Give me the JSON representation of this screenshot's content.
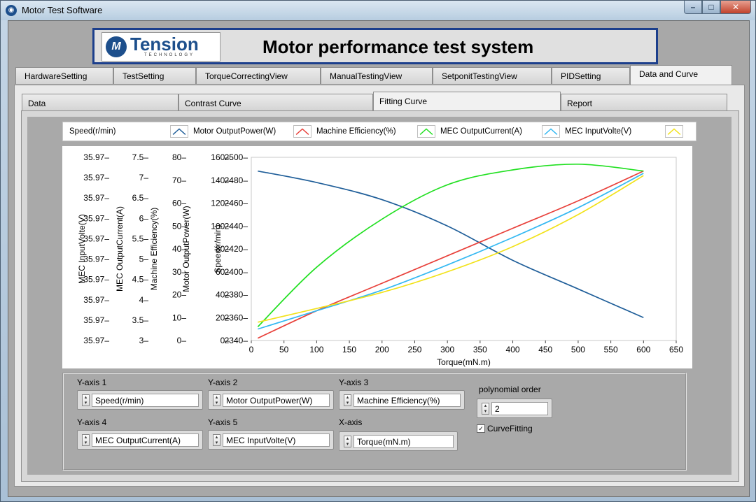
{
  "window": {
    "title": "Motor Test Software"
  },
  "header": {
    "logo_text": "Tension",
    "logo_sub": "TECHNOLOGY",
    "title": "Motor performance test system"
  },
  "main_tabs": [
    "HardwareSetting",
    "TestSetting",
    "TorqueCorrectingView",
    "ManualTestingView",
    "SetponitTestingView",
    "PIDSetting",
    "Data and Curve"
  ],
  "sub_tabs": [
    "Data",
    "Contrast Curve",
    "Fitting Curve",
    "Report"
  ],
  "legend": {
    "speed_label": "Speed(r/min)",
    "items": [
      {
        "label": "Motor OutputPower(W)",
        "color": "#1f5e99"
      },
      {
        "label": "Machine Efficiency(%)",
        "color": "#e8403a"
      },
      {
        "label": "MEC OutputCurrent(A)",
        "color": "#22e022"
      },
      {
        "label": "MEC InputVolte(V)",
        "color": "#33b8f2"
      },
      {
        "label": "",
        "color": "#f2e21a"
      }
    ]
  },
  "chart_data": {
    "type": "line",
    "xlabel": "Torque(mN.m)",
    "xlim": [
      0,
      650
    ],
    "xticks": [
      0,
      50,
      100,
      150,
      200,
      250,
      300,
      350,
      400,
      450,
      500,
      550,
      600,
      650
    ],
    "y_axes": [
      {
        "label": "MEC InputVolte(V)",
        "ticks": [
          "35.97",
          "35.97",
          "35.97",
          "35.97",
          "35.97",
          "35.97",
          "35.97",
          "35.97",
          "35.97",
          "35.97"
        ]
      },
      {
        "label": "MEC OutputCurrent(A)",
        "ticks": [
          "3",
          "3.5",
          "4",
          "4.5",
          "5",
          "5.5",
          "6",
          "6.5",
          "7",
          "7.5"
        ],
        "range": [
          3,
          7.5
        ]
      },
      {
        "label": "Machine Efficiency(%)",
        "ticks": [
          "0",
          "10",
          "20",
          "30",
          "40",
          "50",
          "60",
          "70",
          "80"
        ],
        "range": [
          0,
          80
        ]
      },
      {
        "label": "Motor OutputPower(W)",
        "ticks": [
          "0",
          "20",
          "40",
          "60",
          "80",
          "100",
          "120",
          "140",
          "160"
        ],
        "range": [
          0,
          160
        ]
      },
      {
        "label": "Speed(r/min)",
        "ticks": [
          "2340",
          "2360",
          "2380",
          "2400",
          "2420",
          "2440",
          "2460",
          "2480",
          "2500"
        ],
        "range": [
          2340,
          2500
        ]
      }
    ],
    "series": [
      {
        "name": "Motor OutputPower(W)",
        "color": "#1f5e99",
        "x": [
          10,
          100,
          200,
          300,
          400,
          500,
          600
        ],
        "y": [
          2488,
          2478,
          2463,
          2440,
          2410,
          2385,
          2360
        ]
      },
      {
        "name": "Machine Efficiency(%)",
        "color": "#e8403a",
        "x": [
          10,
          100,
          200,
          300,
          400,
          500,
          600
        ],
        "y": [
          2342,
          2366,
          2390,
          2414,
          2438,
          2462,
          2488
        ]
      },
      {
        "name": "MEC OutputCurrent(A)",
        "color": "#22e022",
        "x": [
          10,
          100,
          200,
          300,
          400,
          500,
          600
        ],
        "y": [
          2352,
          2404,
          2446,
          2476,
          2489,
          2494,
          2488
        ]
      },
      {
        "name": "MEC InputVolte(V)",
        "color": "#33b8f2",
        "x": [
          10,
          100,
          200,
          300,
          400,
          500,
          600
        ],
        "y": [
          2350,
          2366,
          2384,
          2406,
          2430,
          2456,
          2486
        ]
      },
      {
        "color": "#f2e21a",
        "x": [
          10,
          100,
          200,
          300,
          400,
          500,
          600
        ],
        "y": [
          2356,
          2368,
          2382,
          2400,
          2422,
          2450,
          2484
        ]
      }
    ]
  },
  "controls": {
    "y_axis_1": {
      "label": "Y-axis 1",
      "value": "Speed(r/min)"
    },
    "y_axis_2": {
      "label": "Y-axis 2",
      "value": "Motor OutputPower(W)"
    },
    "y_axis_3": {
      "label": "Y-axis 3",
      "value": "Machine Efficiency(%)"
    },
    "y_axis_4": {
      "label": "Y-axis 4",
      "value": "MEC OutputCurrent(A)"
    },
    "y_axis_5": {
      "label": "Y-axis 5",
      "value": "MEC InputVolte(V)"
    },
    "x_axis": {
      "label": "X-axis",
      "value": "Torque(mN.m)"
    },
    "poly": {
      "label": "polynomial order",
      "value": "2"
    },
    "curve_fitting": {
      "label": "CurveFitting",
      "checked": true
    }
  }
}
